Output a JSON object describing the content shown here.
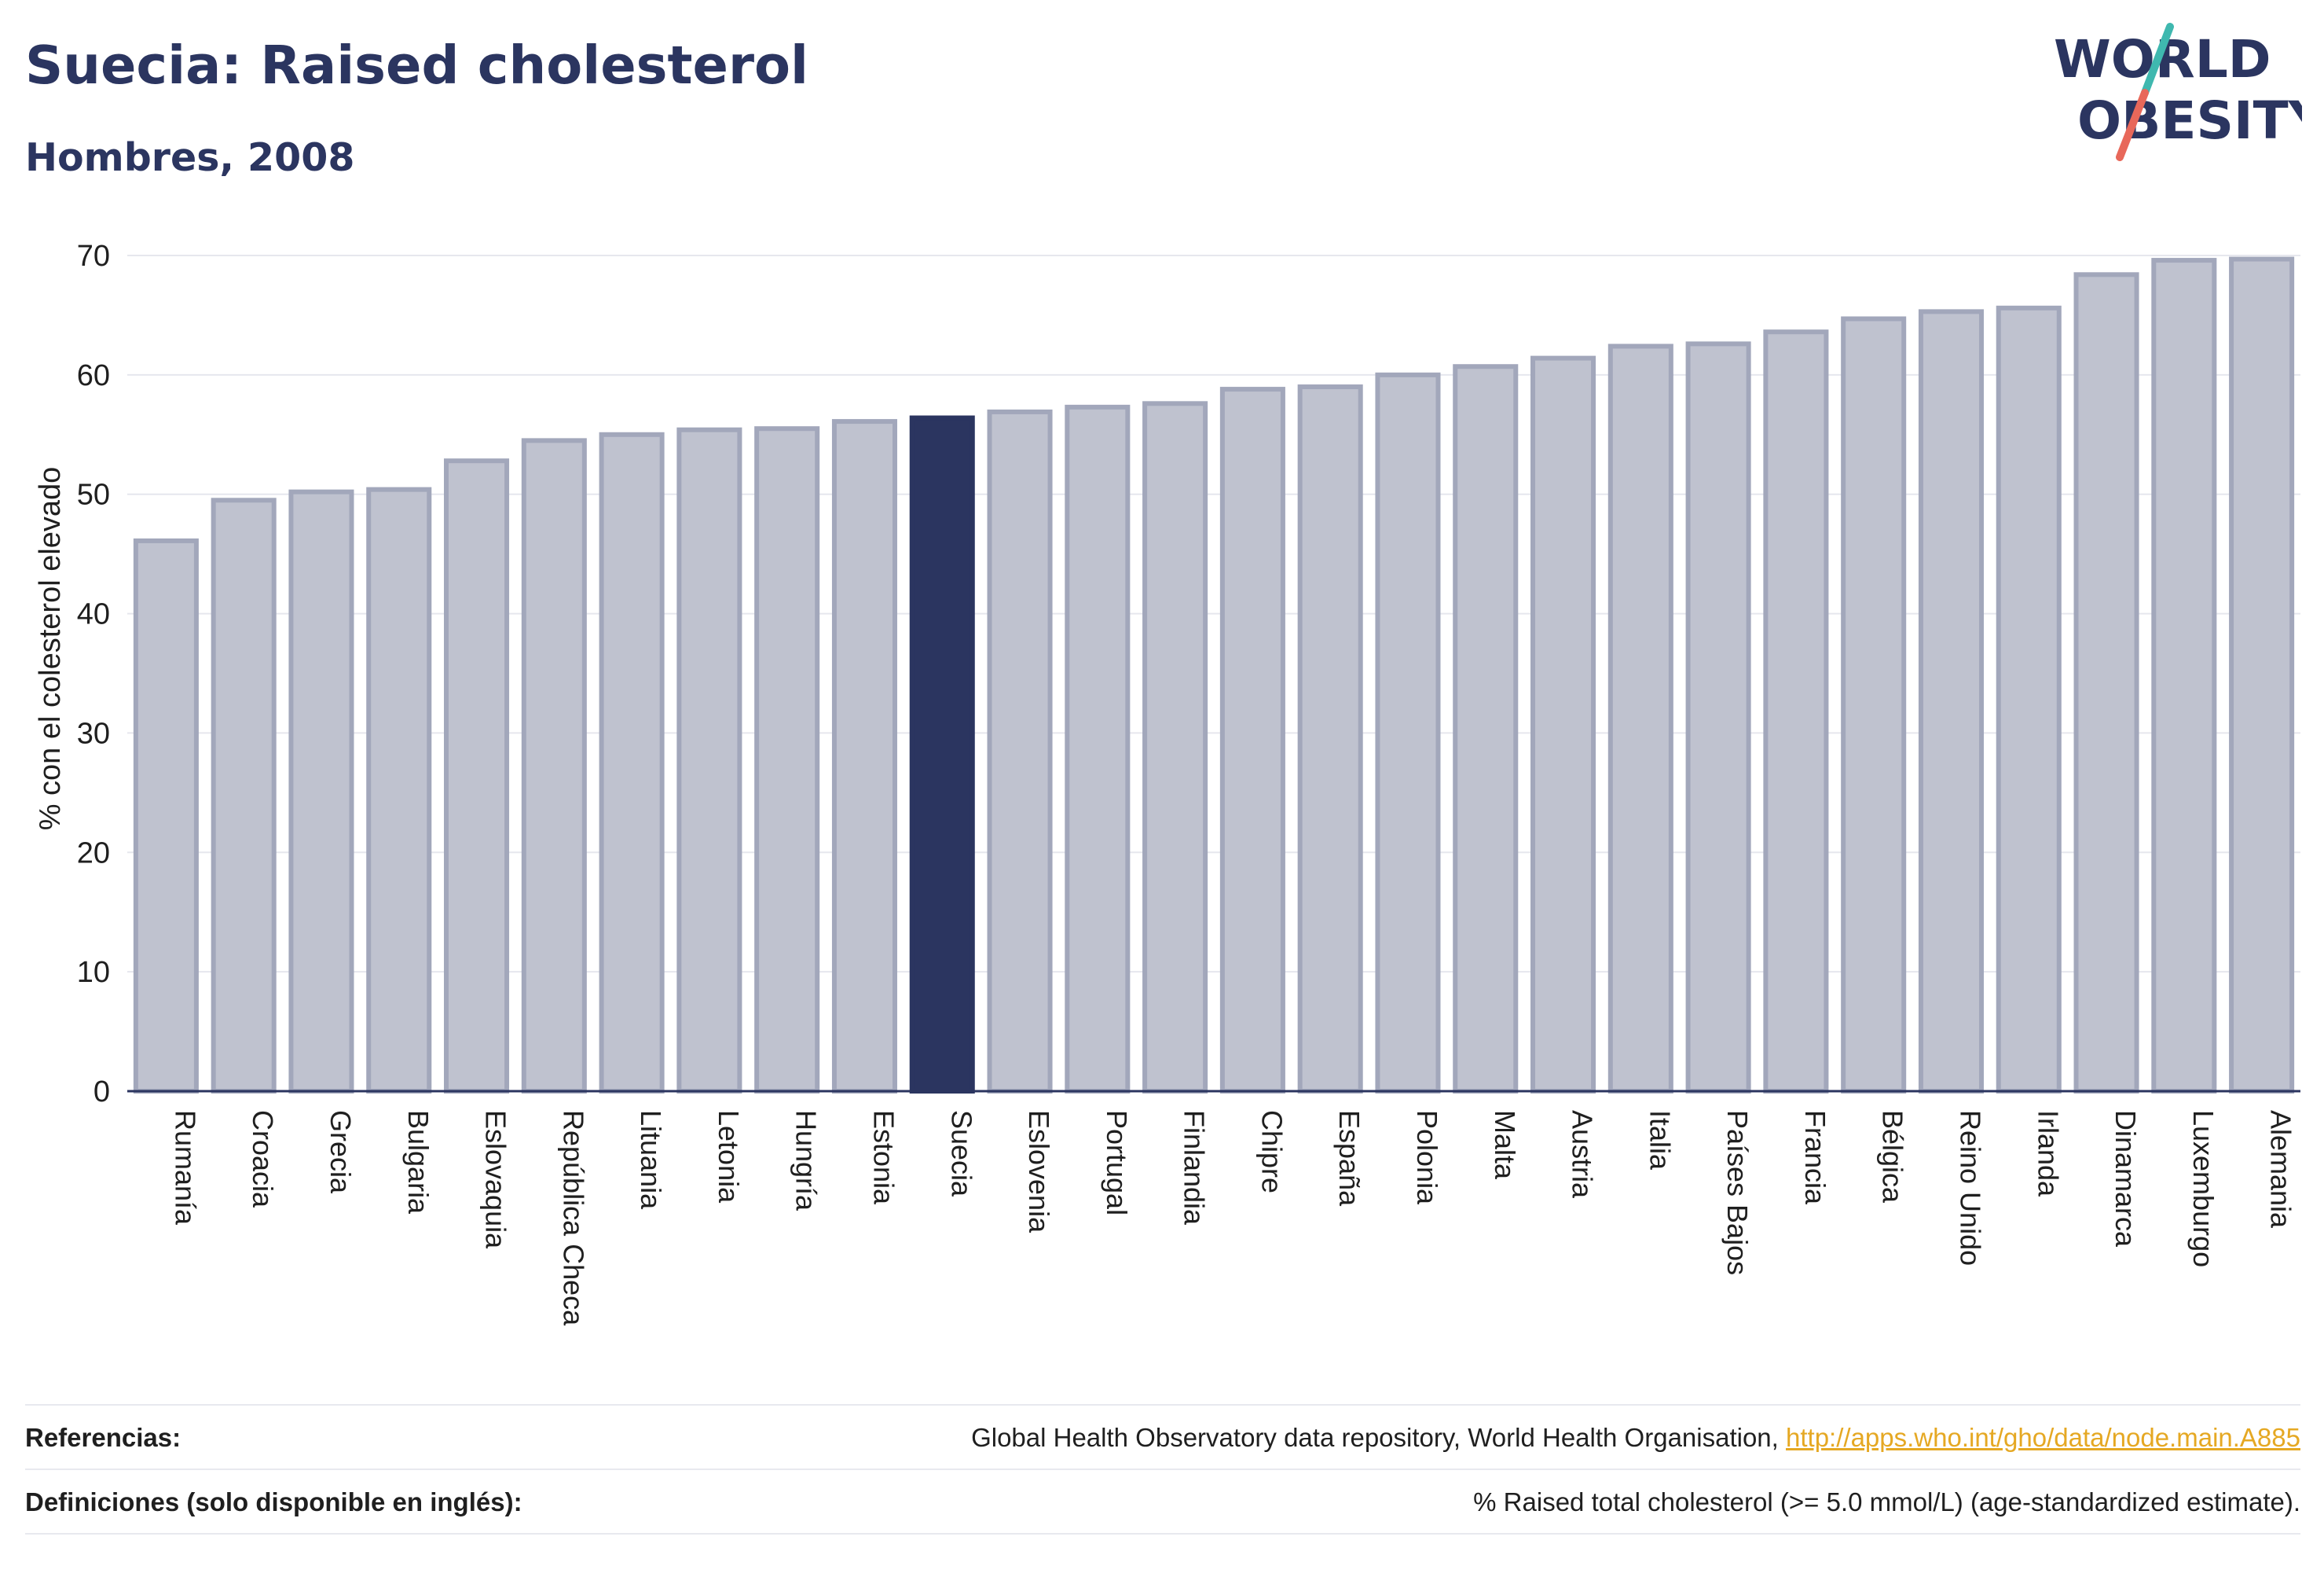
{
  "header": {
    "title": "Suecia: Raised cholesterol",
    "subtitle": "Hombres, 2008",
    "logo_line1": "WORLD",
    "logo_line2": "OBESITY"
  },
  "colors": {
    "navy": "#2b3560",
    "bar": "#bfc2cf",
    "bar_border": "#a2a7bb",
    "highlight": "#2b3560",
    "logo_teal": "#3fb8af",
    "logo_coral": "#e8685a",
    "link": "#e5a823"
  },
  "chart_data": {
    "type": "bar",
    "ylabel": "% con el colesterol elevado",
    "ylim": [
      0,
      70
    ],
    "yticks": [
      0,
      10,
      20,
      30,
      40,
      50,
      60,
      70
    ],
    "grid": true,
    "highlight": "Suecia",
    "categories": [
      "Rumanía",
      "Croacia",
      "Grecia",
      "Bulgaria",
      "Eslovaquia",
      "República Checa",
      "Lituania",
      "Letonia",
      "Hungría",
      "Estonia",
      "Suecia",
      "Eslovenia",
      "Portugal",
      "Finlandia",
      "Chipre",
      "España",
      "Polonia",
      "Malta",
      "Austria",
      "Italia",
      "Países Bajos",
      "Francia",
      "Bélgica",
      "Reino Unido",
      "Irlanda",
      "Dinamarca",
      "Luxemburgo",
      "Alemania"
    ],
    "values": [
      46.1,
      49.5,
      50.2,
      50.4,
      52.8,
      54.5,
      55.0,
      55.4,
      55.5,
      56.1,
      56.4,
      56.9,
      57.3,
      57.6,
      58.8,
      59.0,
      60.0,
      60.7,
      61.4,
      62.4,
      62.6,
      63.6,
      64.7,
      65.3,
      65.6,
      68.4,
      69.6,
      69.7
    ]
  },
  "footer": {
    "references_label": "Referencias:",
    "references_text": "Global Health Observatory data repository, World Health Organisation, ",
    "references_link": "http://apps.who.int/gho/data/node.main.A885",
    "definitions_label": "Definiciones (solo disponible en inglés):",
    "definitions_text": "% Raised total cholesterol (>= 5.0 mmol/L) (age-standardized estimate)."
  }
}
